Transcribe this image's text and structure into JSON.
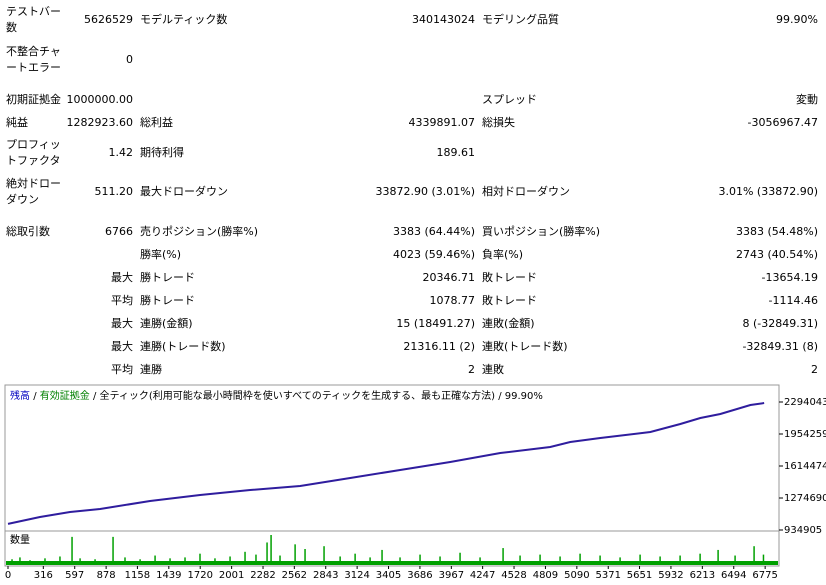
{
  "report": {
    "rows": [
      {
        "label1": "テストバー数",
        "value1": "5626529",
        "label2": "モデルティック数",
        "value2": "340143024",
        "label3": "モデリング品質",
        "value3": "99.90%"
      },
      {
        "label1": "不整合チャートエラー",
        "value1": "0"
      },
      {
        "label1": "初期証拠金",
        "value1": "1000000.00",
        "label3": "スプレッド",
        "value3": "変動"
      },
      {
        "label1": "純益",
        "value1": "1282923.60",
        "label2": "総利益",
        "value2": "4339891.07",
        "label3": "総損失",
        "value3": "-3056967.47"
      },
      {
        "label1": "プロフィットファクタ",
        "value1": "1.42",
        "label2": "期待利得",
        "value2": "189.61"
      },
      {
        "label1": "絶対ドローダウン",
        "value1": "511.20",
        "label2": "最大ドローダウン",
        "value2": "33872.90 (3.01%)",
        "label3": "相対ドローダウン",
        "value3": "3.01% (33872.90)"
      },
      {
        "label1": "総取引数",
        "value1": "6766",
        "label2": "売りポジション(勝率%)",
        "value2": "3383 (64.44%)",
        "label3": "買いポジション(勝率%)",
        "value3": "3383 (54.48%)"
      },
      {
        "label2": "勝率(%)",
        "value2": "4023 (59.46%)",
        "label3": "負率(%)",
        "value3": "2743 (40.54%)"
      },
      {
        "value1": "最大",
        "label2": "勝トレード",
        "value2": "20346.71",
        "label3": "敗トレード",
        "value3": "-13654.19"
      },
      {
        "value1": "平均",
        "label2": "勝トレード",
        "value2": "1078.77",
        "label3": "敗トレード",
        "value3": "-1114.46"
      },
      {
        "value1": "最大",
        "label2": "連勝(金額)",
        "value2": "15 (18491.27)",
        "label3": "連敗(金額)",
        "value3": "8 (-32849.31)"
      },
      {
        "value1": "最大",
        "label2": "連勝(トレード数)",
        "value2": "21316.11 (2)",
        "label3": "連敗(トレード数)",
        "value3": "-32849.31 (8)"
      },
      {
        "value1": "平均",
        "label2": "連勝",
        "value2": "2",
        "label3": "連敗",
        "value3": "2"
      }
    ]
  },
  "chart_data": {
    "type": "line",
    "legend_items": [
      {
        "text": "残高",
        "color": "#0000c0"
      },
      {
        "text": "有効証拠金",
        "color": "#008000"
      }
    ],
    "legend_separator": "/",
    "subtitle": "全ティック(利用可能な最小時間枠を使いすべてのティックを生成する、最も正確な方法)",
    "quality": "99.90%",
    "series": [
      {
        "name": "残高",
        "color": "#2f1d9e",
        "x": [
          0,
          286,
          555,
          824,
          1271,
          1719,
          2167,
          2614,
          3062,
          3509,
          3957,
          4405,
          4852,
          5031,
          5300,
          5748,
          6016,
          6195,
          6374,
          6643,
          6766
        ],
        "values": [
          1000000,
          1073000,
          1126000,
          1157900,
          1242800,
          1306500,
          1359600,
          1402100,
          1487000,
          1572000,
          1656900,
          1752500,
          1816200,
          1869300,
          1911800,
          1975500,
          2060400,
          2124100,
          2166600,
          2262200,
          2282924
        ]
      }
    ],
    "xlim": [
      0,
      6890
    ],
    "ylim": [
      934905,
      2442700
    ],
    "xticks": [
      0,
      316,
      597,
      878,
      1158,
      1439,
      1720,
      2001,
      2282,
      2562,
      2843,
      3124,
      3405,
      3686,
      3967,
      4247,
      4528,
      4809,
      5090,
      5371,
      5651,
      5932,
      6213,
      6494,
      6775
    ],
    "yticks": [
      934905,
      1274690,
      1614474,
      1954259,
      2294043
    ],
    "volume": {
      "label": "数量",
      "color": "#00a000",
      "ylim": [
        0,
        30
      ],
      "x": [
        36,
        107,
        197,
        331,
        465,
        573,
        645,
        779,
        940,
        1047,
        1182,
        1316,
        1450,
        1584,
        1718,
        1852,
        1987,
        2121,
        2219,
        2318,
        2354,
        2434,
        2569,
        2658,
        2828,
        2972,
        3106,
        3240,
        3347,
        3508,
        3687,
        3866,
        4045,
        4224,
        4430,
        4582,
        4761,
        4940,
        5119,
        5298,
        5477,
        5656,
        5835,
        6014,
        6193,
        6354,
        6506,
        6676,
        6760
      ],
      "values": [
        4,
        6,
        3,
        5,
        7,
        28,
        5,
        4,
        28,
        6,
        4,
        8,
        5,
        6,
        10,
        5,
        7,
        12,
        9,
        22,
        30,
        8,
        20,
        15,
        18,
        7,
        10,
        6,
        14,
        6,
        9,
        7,
        11,
        6,
        16,
        8,
        9,
        7,
        10,
        8,
        6,
        9,
        7,
        8,
        10,
        14,
        8,
        18,
        9
      ]
    }
  }
}
